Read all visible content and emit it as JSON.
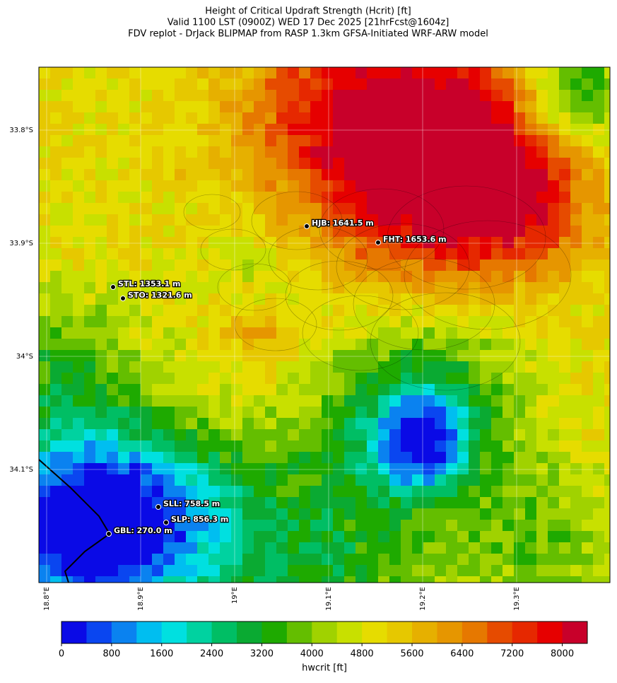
{
  "title": [
    "Height of Critical Updraft Strength (Hcrit) [ft]",
    "Valid 1100 LST (0900Z) WED 17 Dec 2025 [21hrFcst@1604z]",
    "FDV replot - DrJack BLIPMAP from RASP 1.3km GFSA-Initiated WRF-ARW model"
  ],
  "map": {
    "lat_labels": [
      "33.8°S",
      "33.9°S",
      "34°S",
      "34.1°S"
    ],
    "lon_labels": [
      "18.8°E",
      "18.9°E",
      "19°E",
      "19.1°E",
      "19.2°E",
      "19.3°E"
    ],
    "stations": [
      {
        "label": "HJB: 1641.5 m"
      },
      {
        "label": "FHT: 1653.6 m"
      },
      {
        "label": "STL: 1353.1 m"
      },
      {
        "label": "STO: 1321.6 m"
      },
      {
        "label": "SLL: 758.5 m"
      },
      {
        "label": "SLP: 856.3 m"
      },
      {
        "label": "GBL: 270.0 m"
      }
    ]
  },
  "colorbar": {
    "label": "hwcrit [ft]",
    "lim": [
      0,
      8400
    ],
    "ticks": [
      0,
      800,
      1600,
      2400,
      3200,
      4000,
      4800,
      5600,
      6400,
      7200,
      8000
    ],
    "colors": [
      "#0a0ae6",
      "#0a46f0",
      "#0a82f0",
      "#00bef0",
      "#00e0e0",
      "#00d2a0",
      "#00be64",
      "#0aaa32",
      "#1eaa00",
      "#64be00",
      "#a0d200",
      "#c8e000",
      "#e6dc00",
      "#e6c800",
      "#e6b000",
      "#e69600",
      "#e67800",
      "#e64b00",
      "#e62800",
      "#e60000",
      "#c8002a"
    ]
  }
}
